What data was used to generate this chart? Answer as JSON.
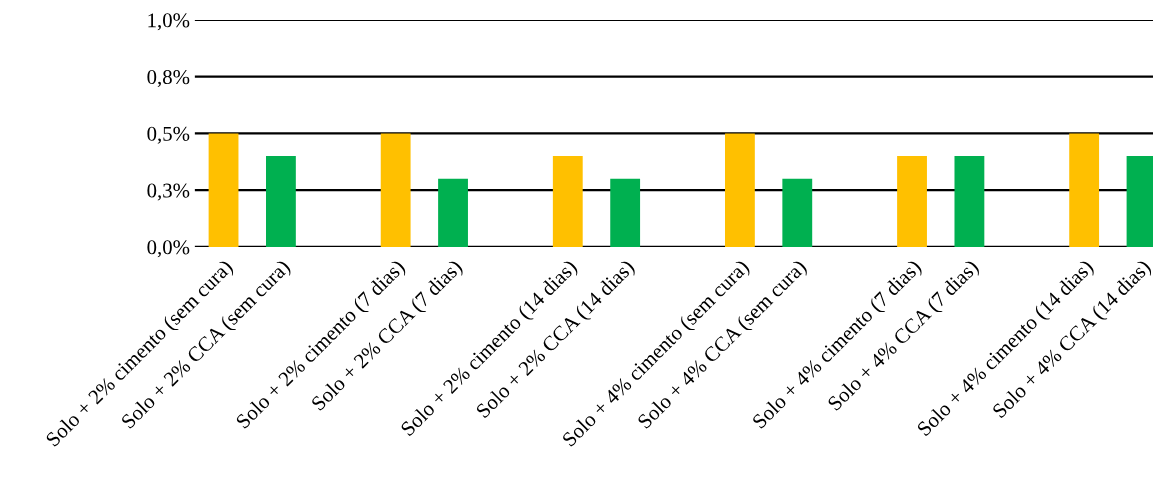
{
  "chart_data": {
    "type": "bar",
    "categories": [
      "Solo + 2% cimento (sem cura)",
      "Solo + 2% CCA (sem cura)",
      null,
      "Solo + 2% cimento (7 dias)",
      "Solo + 2% CCA (7 dias)",
      null,
      "Solo + 2% cimento (14 dias)",
      "Solo + 2% CCA (14 dias)",
      null,
      "Solo + 4% cimento (sem cura)",
      "Solo + 4% CCA (sem cura)",
      null,
      "Solo + 4% cimento (7 dias)",
      "Solo + 4% CCA (7 dias)",
      null,
      "Solo + 4% cimento (14 dias)",
      "Solo + 4% CCA (14 dias)"
    ],
    "values": [
      0.5,
      0.4,
      null,
      0.5,
      0.3,
      null,
      0.4,
      0.3,
      null,
      0.5,
      0.3,
      null,
      0.4,
      0.4,
      null,
      0.5,
      0.4
    ],
    "colors": [
      "#ffc000",
      "#00b050",
      null,
      "#ffc000",
      "#00b050",
      null,
      "#ffc000",
      "#00b050",
      null,
      "#ffc000",
      "#00b050",
      null,
      "#ffc000",
      "#00b050",
      null,
      "#ffc000",
      "#00b050"
    ],
    "ylim": [
      0,
      1
    ],
    "yticks": [
      {
        "value": 0,
        "label": "0,0%"
      },
      {
        "value": 0.25,
        "label": "0,3%"
      },
      {
        "value": 0.5,
        "label": "0,5%"
      },
      {
        "value": 0.75,
        "label": "0,8%"
      },
      {
        "value": 1,
        "label": "1,0%"
      }
    ],
    "grid": "y"
  }
}
